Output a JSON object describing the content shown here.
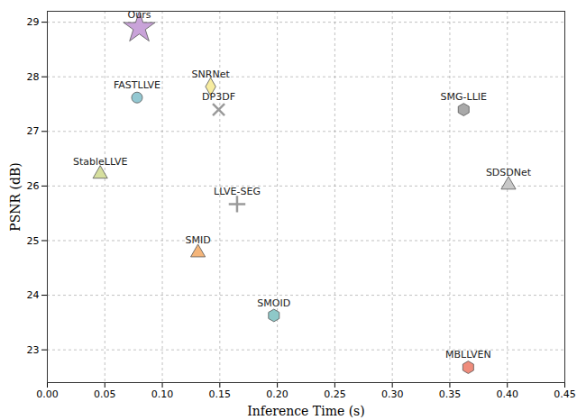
{
  "chart_data": {
    "type": "scatter",
    "x_label": "Inference Time (s)",
    "y_label": "PSNR (dB)",
    "xlim": [
      0,
      0.45
    ],
    "ylim": [
      22.4,
      29.2
    ],
    "xticks": [
      {
        "value": 0,
        "label": "0.00"
      },
      {
        "value": 0.05,
        "label": "0.05"
      },
      {
        "value": 0.1,
        "label": "0.10"
      },
      {
        "value": 0.15,
        "label": "0.15"
      },
      {
        "value": 0.2,
        "label": "0.20"
      },
      {
        "value": 0.25,
        "label": "0.25"
      },
      {
        "value": 0.3,
        "label": "0.30"
      },
      {
        "value": 0.35,
        "label": "0.35"
      },
      {
        "value": 0.4,
        "label": "0.40"
      },
      {
        "value": 0.45,
        "label": "0.45"
      }
    ],
    "yticks": [
      23,
      24,
      25,
      26,
      27,
      28,
      29
    ],
    "grid": true,
    "series": [
      {
        "name": "Ours",
        "color": "#c9a3d9",
        "marker": "star",
        "x": [
          0.08
        ],
        "values": [
          28.9
        ]
      },
      {
        "name": "SNRNet",
        "color": "#f7ecA0",
        "marker": "diamond",
        "x": [
          0.142
        ],
        "values": [
          27.82
        ]
      },
      {
        "name": "FASTLLVE",
        "color": "#93c8d2",
        "marker": "circle",
        "x": [
          0.078
        ],
        "values": [
          27.62
        ]
      },
      {
        "name": "DP3DF",
        "color": "#9a9a9a",
        "marker": "times",
        "x": [
          0.149
        ],
        "values": [
          27.4
        ]
      },
      {
        "name": "SMG-LLIE",
        "color": "#a9a9a9",
        "marker": "hexagon",
        "x": [
          0.362
        ],
        "values": [
          27.4
        ]
      },
      {
        "name": "StableLLVE",
        "color": "#d6df9e",
        "marker": "triangle",
        "x": [
          0.046
        ],
        "values": [
          26.22
        ]
      },
      {
        "name": "SDSDNet",
        "color": "#c8c8c8",
        "marker": "triangle",
        "x": [
          0.401
        ],
        "values": [
          26.02
        ]
      },
      {
        "name": "LLVE-SEG",
        "color": "#9a9a9a",
        "marker": "plus",
        "x": [
          0.165
        ],
        "values": [
          25.67
        ]
      },
      {
        "name": "SMID",
        "color": "#f4b57a",
        "marker": "triangle",
        "x": [
          0.131
        ],
        "values": [
          24.78
        ]
      },
      {
        "name": "SMOID",
        "color": "#8ec8c8",
        "marker": "hexagon",
        "x": [
          0.197
        ],
        "values": [
          23.63
        ]
      },
      {
        "name": "MBLLVEN",
        "color": "#ef8c7c",
        "marker": "hexagon",
        "x": [
          0.366
        ],
        "values": [
          22.68
        ]
      }
    ]
  }
}
